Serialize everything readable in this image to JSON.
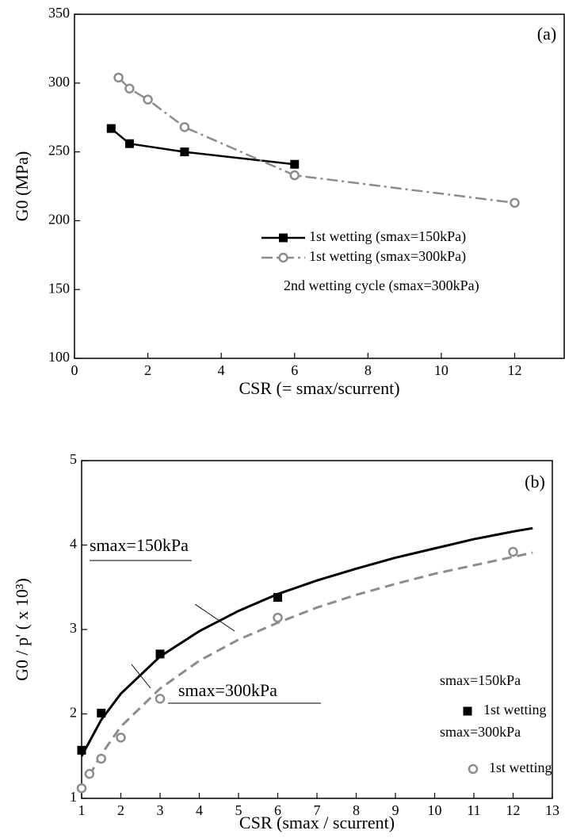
{
  "chart_data": [
    {
      "type": "line",
      "annotation": "(a)",
      "y_label": "G0 (MPa)",
      "x_label": "CSR (= smax/scurrent)",
      "xlim": [
        0,
        13.35
      ],
      "xticks": [
        0,
        2,
        4,
        6,
        8,
        10,
        12
      ],
      "ylim": [
        100,
        350
      ],
      "yticks": [
        100,
        150,
        200,
        250,
        300,
        350
      ],
      "legend_note": "2nd wetting cycle (smax=300kPa)",
      "series": [
        {
          "name": "1st wetting (smax=150kPa)",
          "color": "#000000",
          "line_style": "solid",
          "marker": "square",
          "x": [
            1,
            1.5,
            3,
            6
          ],
          "values": [
            267,
            256,
            250,
            241
          ]
        },
        {
          "name": "1st wetting  (smax=300kPa)",
          "color": "#8c8c8c",
          "line_style": "dashdot",
          "marker": "circle",
          "x": [
            1.2,
            1.5,
            2,
            3,
            6,
            12
          ],
          "values": [
            304,
            296,
            288,
            268,
            233,
            213
          ]
        }
      ]
    },
    {
      "type": "line",
      "annotation": "(b)",
      "y_label": "G0 / p' ( x 10³)",
      "x_label": "CSR (smax / scurrent)",
      "xlim": [
        1,
        13
      ],
      "xticks": [
        1,
        2,
        3,
        4,
        5,
        6,
        7,
        8,
        9,
        10,
        11,
        12,
        13
      ],
      "ylim": [
        1,
        5
      ],
      "yticks": [
        1,
        2,
        3,
        4,
        5
      ],
      "series": [
        {
          "name": "smax=150kPa",
          "color": "#000000",
          "line_style": "solid",
          "marker": "none",
          "x": [
            1,
            1.5,
            2,
            3,
            4,
            5,
            6,
            7,
            8,
            9,
            10,
            11,
            12,
            12.5
          ],
          "values": [
            1.5,
            1.93,
            2.24,
            2.68,
            2.98,
            3.22,
            3.42,
            3.58,
            3.72,
            3.85,
            3.96,
            4.07,
            4.16,
            4.2
          ]
        },
        {
          "name": "smax=300kPa",
          "color": "#8c8c8c",
          "line_style": "dashed",
          "marker": "none",
          "x": [
            1.2,
            1.5,
            2,
            3,
            4,
            5,
            6,
            7,
            8,
            9,
            10,
            11,
            12,
            12.5
          ],
          "values": [
            1.27,
            1.52,
            1.85,
            2.3,
            2.63,
            2.88,
            3.08,
            3.26,
            3.41,
            3.54,
            3.66,
            3.76,
            3.86,
            3.91
          ]
        },
        {
          "name": "1st wetting",
          "group": "smax=150kPa",
          "color": "#000000",
          "line_style": "none",
          "marker": "square",
          "x": [
            1,
            1.5,
            3,
            6
          ],
          "values": [
            1.57,
            2.01,
            2.71,
            3.38
          ]
        },
        {
          "name": "1st wetting",
          "group": "smax=300kPa",
          "color": "#8c8c8c",
          "line_style": "none",
          "marker": "circle",
          "x": [
            1,
            1.2,
            1.5,
            2,
            3,
            6,
            12
          ],
          "values": [
            1.12,
            1.29,
            1.47,
            1.72,
            2.18,
            3.14,
            3.92
          ]
        }
      ]
    }
  ]
}
